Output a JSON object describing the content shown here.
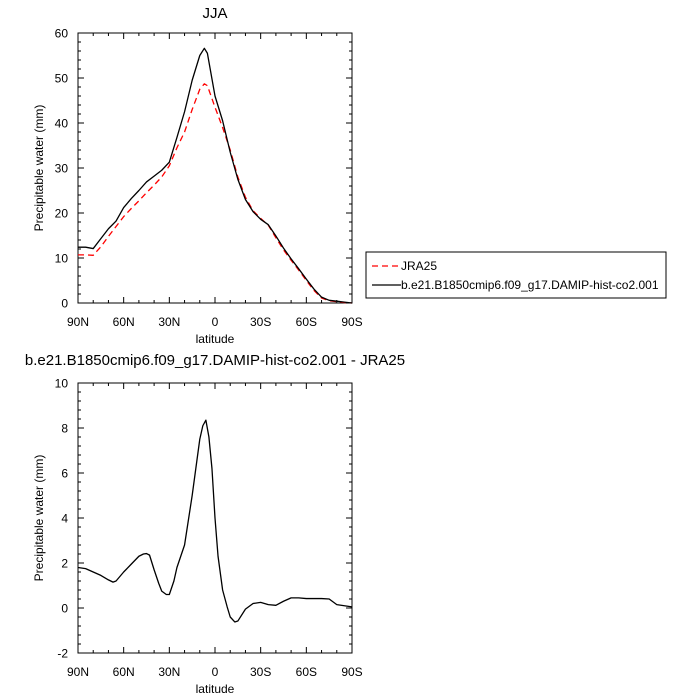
{
  "chart_data": [
    {
      "type": "line",
      "title": "JJA",
      "xlabel": "latitude",
      "ylabel": "Precipitable water (mm)",
      "xlim": [
        90,
        -90
      ],
      "ylim": [
        0,
        60
      ],
      "xticks": [
        90,
        60,
        30,
        0,
        -30,
        -60,
        -90
      ],
      "xtick_labels": [
        "90N",
        "60N",
        "30N",
        "0",
        "30S",
        "60S",
        "90S"
      ],
      "yticks": [
        0,
        10,
        20,
        30,
        40,
        50,
        60
      ],
      "ytick_labels": [
        "0",
        "10",
        "20",
        "30",
        "40",
        "50",
        "60"
      ],
      "legend": "outside-right",
      "series": [
        {
          "name": "JRA25",
          "color": "#ff0000",
          "dash": "dashed",
          "x": [
            90,
            85,
            80,
            75,
            70,
            65,
            60,
            55,
            50,
            45,
            40,
            35,
            30,
            25,
            20,
            15,
            10,
            7,
            5,
            0,
            -5,
            -10,
            -15,
            -20,
            -25,
            -30,
            -35,
            -40,
            -45,
            -50,
            -55,
            -60,
            -65,
            -70,
            -75,
            -80,
            -85,
            -90
          ],
          "values": [
            10.7,
            10.7,
            10.6,
            12.5,
            14.8,
            17.0,
            19.2,
            21.0,
            22.7,
            24.5,
            26.2,
            28.0,
            30.5,
            34.5,
            38.0,
            43.0,
            47.5,
            48.7,
            48.3,
            43.5,
            39.0,
            34.0,
            28.0,
            23.5,
            20.5,
            18.8,
            17.3,
            14.5,
            11.8,
            9.5,
            7.3,
            5.0,
            2.8,
            1.1,
            0.5,
            0.3,
            0.1,
            0.0
          ]
        },
        {
          "name": "b.e21.B1850cmip6.f09_g17.DAMIP-hist-co2.001",
          "color": "#000000",
          "dash": "solid",
          "x": [
            90,
            85,
            80,
            75,
            70,
            65,
            60,
            55,
            50,
            45,
            40,
            35,
            30,
            25,
            20,
            15,
            10,
            7,
            5,
            0,
            -5,
            -10,
            -15,
            -20,
            -25,
            -30,
            -35,
            -40,
            -45,
            -50,
            -55,
            -60,
            -65,
            -70,
            -75,
            -80,
            -85,
            -90
          ],
          "values": [
            12.4,
            12.4,
            12.1,
            14.3,
            16.5,
            18.2,
            21.2,
            23.2,
            25.0,
            26.9,
            28.2,
            29.5,
            31.3,
            36.8,
            42.5,
            49.5,
            55.0,
            56.6,
            55.5,
            46.0,
            40.5,
            33.5,
            27.5,
            23.0,
            20.3,
            18.6,
            17.4,
            14.9,
            12.2,
            9.8,
            7.6,
            5.3,
            3.1,
            1.3,
            0.6,
            0.4,
            0.2,
            0.0
          ]
        }
      ]
    },
    {
      "type": "line",
      "title": "b.e21.B1850cmip6.f09_g17.DAMIP-hist-co2.001 - JRA25",
      "xlabel": "latitude",
      "ylabel": "Precipitable water (mm)",
      "xlim": [
        90,
        -90
      ],
      "ylim": [
        -2,
        10
      ],
      "xticks": [
        90,
        60,
        30,
        0,
        -30,
        -60,
        -90
      ],
      "xtick_labels": [
        "90N",
        "60N",
        "30N",
        "0",
        "30S",
        "60S",
        "90S"
      ],
      "yticks": [
        -2,
        0,
        2,
        4,
        6,
        8,
        10
      ],
      "ytick_labels": [
        "-2",
        "0",
        "2",
        "4",
        "6",
        "8",
        "10"
      ],
      "series": [
        {
          "color": "#000000",
          "dash": "solid",
          "x": [
            90,
            85,
            80,
            75,
            70,
            67,
            65,
            60,
            55,
            50,
            47,
            45,
            43,
            40,
            37,
            35,
            32,
            30,
            27,
            25,
            20,
            15,
            12,
            10,
            8,
            6,
            4,
            2,
            0,
            -2,
            -5,
            -8,
            -10,
            -13,
            -15,
            -20,
            -25,
            -30,
            -35,
            -40,
            -45,
            -50,
            -55,
            -60,
            -65,
            -70,
            -75,
            -80,
            -85,
            -90
          ],
          "values": [
            1.8,
            1.75,
            1.6,
            1.45,
            1.25,
            1.15,
            1.2,
            1.6,
            1.95,
            2.3,
            2.4,
            2.42,
            2.35,
            1.7,
            1.1,
            0.75,
            0.6,
            0.6,
            1.2,
            1.8,
            2.8,
            5.0,
            6.5,
            7.5,
            8.1,
            8.35,
            7.6,
            6.2,
            4.0,
            2.3,
            0.8,
            0.05,
            -0.4,
            -0.62,
            -0.58,
            -0.05,
            0.2,
            0.25,
            0.15,
            0.12,
            0.3,
            0.45,
            0.45,
            0.42,
            0.42,
            0.42,
            0.4,
            0.15,
            0.1,
            0.05
          ]
        }
      ]
    }
  ]
}
